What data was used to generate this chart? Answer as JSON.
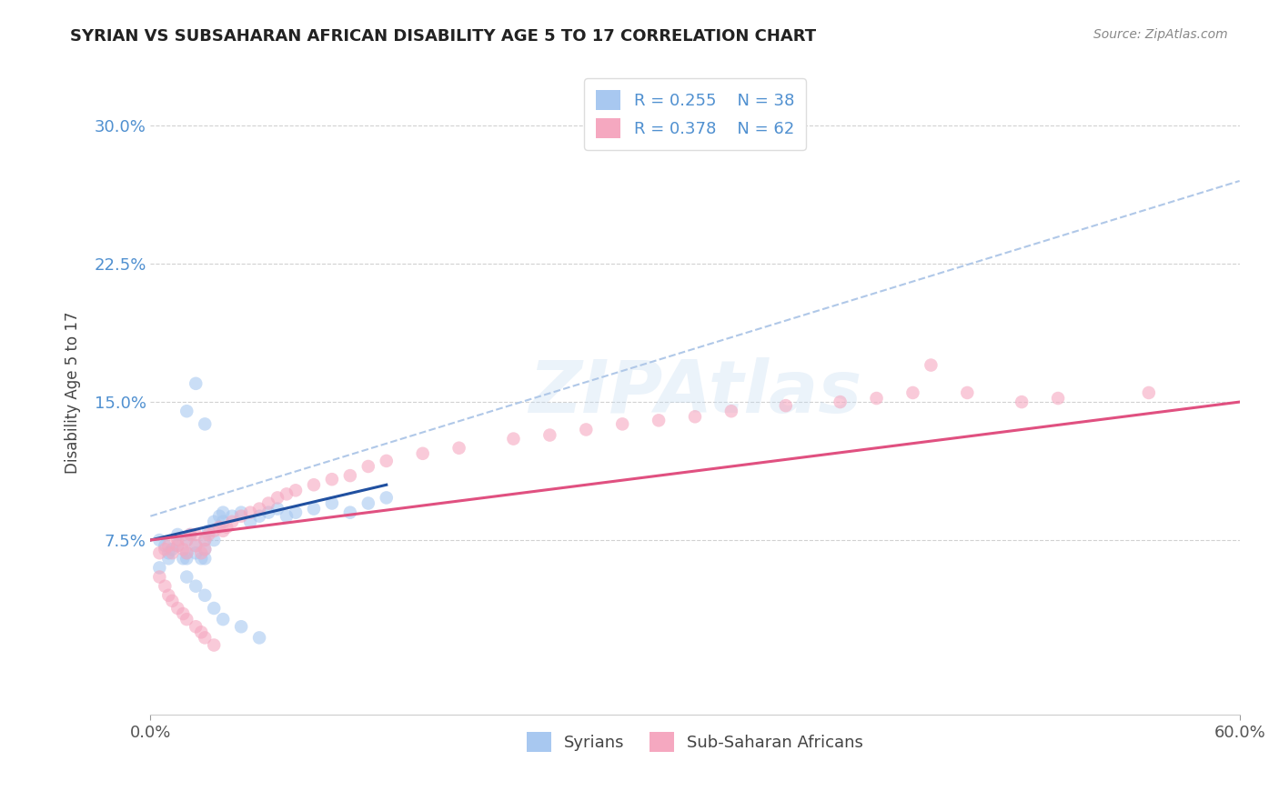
{
  "title": "SYRIAN VS SUBSAHARAN AFRICAN DISABILITY AGE 5 TO 17 CORRELATION CHART",
  "source": "Source: ZipAtlas.com",
  "ylabel": "Disability Age 5 to 17",
  "xlim": [
    0.0,
    0.6
  ],
  "ylim": [
    -0.02,
    0.33
  ],
  "xticks": [
    0.0,
    0.6
  ],
  "xticklabels": [
    "0.0%",
    "60.0%"
  ],
  "yticks": [
    0.075,
    0.15,
    0.225,
    0.3
  ],
  "yticklabels": [
    "7.5%",
    "15.0%",
    "22.5%",
    "30.0%"
  ],
  "legend_r1": "R = 0.255",
  "legend_n1": "N = 38",
  "legend_r2": "R = 0.378",
  "legend_n2": "N = 62",
  "color_syrian": "#a8c8f0",
  "color_subsaharan": "#f5a8c0",
  "color_trendline_syrian_solid": "#2050a0",
  "color_trendline_syrian_dashed": "#b0c8e8",
  "color_trendline_subsaharan": "#e05080",
  "color_title": "#222222",
  "color_source": "#888888",
  "color_ytick_label": "#5090d0",
  "background_color": "#ffffff",
  "watermark": "ZIPAtlas",
  "trendline_syr_x0": 0.0,
  "trendline_syr_y0": 0.075,
  "trendline_syr_x1": 0.13,
  "trendline_syr_y1": 0.105,
  "trendline_syr_dash_x0": 0.0,
  "trendline_syr_dash_y0": 0.088,
  "trendline_syr_dash_x1": 0.6,
  "trendline_syr_dash_y1": 0.27,
  "trendline_sub_x0": 0.0,
  "trendline_sub_y0": 0.075,
  "trendline_sub_x1": 0.6,
  "trendline_sub_y1": 0.15,
  "syrians_x": [
    0.005,
    0.008,
    0.01,
    0.01,
    0.012,
    0.015,
    0.015,
    0.018,
    0.02,
    0.02,
    0.02,
    0.022,
    0.025,
    0.025,
    0.028,
    0.03,
    0.03,
    0.03,
    0.032,
    0.035,
    0.035,
    0.038,
    0.04,
    0.04,
    0.045,
    0.05,
    0.055,
    0.06,
    0.065,
    0.07,
    0.075,
    0.08,
    0.09,
    0.1,
    0.11,
    0.12,
    0.13,
    0.005
  ],
  "syrians_y": [
    0.075,
    0.072,
    0.068,
    0.065,
    0.07,
    0.072,
    0.078,
    0.065,
    0.065,
    0.068,
    0.075,
    0.078,
    0.068,
    0.072,
    0.065,
    0.075,
    0.07,
    0.065,
    0.08,
    0.075,
    0.085,
    0.088,
    0.085,
    0.09,
    0.088,
    0.09,
    0.085,
    0.088,
    0.09,
    0.092,
    0.088,
    0.09,
    0.092,
    0.095,
    0.09,
    0.095,
    0.098,
    0.06
  ],
  "syrians_y_outliers": [
    0.145,
    0.16,
    0.138,
    0.055,
    0.05,
    0.045,
    0.038,
    0.032,
    0.028,
    0.022
  ],
  "syrians_x_outliers": [
    0.02,
    0.025,
    0.03,
    0.02,
    0.025,
    0.03,
    0.035,
    0.04,
    0.05,
    0.06
  ],
  "subsaharan_x": [
    0.005,
    0.008,
    0.01,
    0.012,
    0.015,
    0.015,
    0.018,
    0.02,
    0.02,
    0.022,
    0.025,
    0.025,
    0.028,
    0.03,
    0.03,
    0.032,
    0.035,
    0.038,
    0.04,
    0.042,
    0.045,
    0.05,
    0.055,
    0.06,
    0.065,
    0.07,
    0.075,
    0.08,
    0.09,
    0.1,
    0.11,
    0.12,
    0.13,
    0.15,
    0.17,
    0.2,
    0.22,
    0.24,
    0.26,
    0.28,
    0.3,
    0.32,
    0.35,
    0.38,
    0.4,
    0.42,
    0.45,
    0.48,
    0.5,
    0.55,
    0.005,
    0.008,
    0.01,
    0.012,
    0.015,
    0.018,
    0.02,
    0.025,
    0.028,
    0.03,
    0.035,
    0.43
  ],
  "subsaharan_y": [
    0.068,
    0.07,
    0.072,
    0.068,
    0.072,
    0.075,
    0.07,
    0.068,
    0.075,
    0.078,
    0.072,
    0.078,
    0.068,
    0.075,
    0.07,
    0.078,
    0.08,
    0.082,
    0.08,
    0.082,
    0.085,
    0.088,
    0.09,
    0.092,
    0.095,
    0.098,
    0.1,
    0.102,
    0.105,
    0.108,
    0.11,
    0.115,
    0.118,
    0.122,
    0.125,
    0.13,
    0.132,
    0.135,
    0.138,
    0.14,
    0.142,
    0.145,
    0.148,
    0.15,
    0.152,
    0.155,
    0.155,
    0.15,
    0.152,
    0.155,
    0.055,
    0.05,
    0.045,
    0.042,
    0.038,
    0.035,
    0.032,
    0.028,
    0.025,
    0.022,
    0.018,
    0.17
  ]
}
